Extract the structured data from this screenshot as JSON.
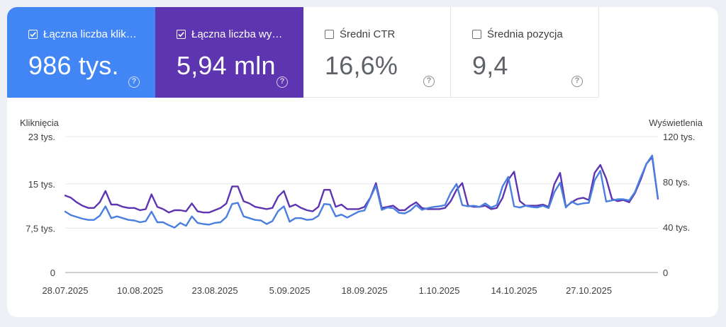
{
  "metrics": [
    {
      "label": "Łączna liczba klik…",
      "value": "986 tys.",
      "checked": true,
      "bg": "#4285f4",
      "help": "?"
    },
    {
      "label": "Łączna liczba wy…",
      "value": "5,94 mln",
      "checked": true,
      "bg": "#5e35b1",
      "help": "?"
    },
    {
      "label": "Średni CTR",
      "value": "16,6%",
      "checked": false,
      "bg": "#ffffff",
      "help": "?"
    },
    {
      "label": "Średnia pozycja",
      "value": "9,4",
      "checked": false,
      "bg": "#ffffff",
      "help": "?"
    }
  ],
  "chart_data": {
    "type": "line",
    "ylabel_left": "Kliknięcia",
    "ylabel_right": "Wyświetlenia",
    "left_ticks": [
      {
        "v": 0,
        "label": "0"
      },
      {
        "v": 7.5,
        "label": "7,5 tys."
      },
      {
        "v": 15,
        "label": "15 tys."
      },
      {
        "v": 23,
        "label": "23 tys."
      }
    ],
    "right_ticks": [
      {
        "v": 0,
        "label": "0"
      },
      {
        "v": 40,
        "label": "40 tys."
      },
      {
        "v": 80,
        "label": "80 tys."
      },
      {
        "v": 120,
        "label": "120 tys."
      }
    ],
    "ylim_left": [
      0,
      23
    ],
    "ylim_right": [
      0,
      120
    ],
    "x_tick_labels": [
      "28.07.2025",
      "10.08.2025",
      "23.08.2025",
      "5.09.2025",
      "18.09.2025",
      "1.10.2025",
      "14.10.2025",
      "27.10.2025"
    ],
    "x_tick_index": [
      0,
      13,
      26,
      39,
      52,
      65,
      78,
      91
    ],
    "grid": true,
    "series": [
      {
        "axis": "right",
        "color": "#5e35b1",
        "unit": "tys.",
        "values": [
          68,
          66,
          62,
          59,
          57,
          57,
          62,
          72,
          60,
          60,
          58,
          57,
          57,
          55,
          56,
          69,
          58,
          56,
          53,
          55,
          55,
          54,
          61,
          54,
          53,
          53,
          55,
          57,
          61,
          76,
          76,
          63,
          61,
          58,
          57,
          56,
          57,
          67,
          72,
          58,
          60,
          57,
          55,
          54,
          58,
          73,
          73,
          58,
          60,
          56,
          56,
          56,
          58,
          66,
          79,
          57,
          58,
          59,
          55,
          55,
          59,
          62,
          57,
          56,
          56,
          56,
          57,
          63,
          73,
          79,
          59,
          58,
          58,
          59,
          56,
          57,
          66,
          82,
          89,
          63,
          59,
          59,
          59,
          60,
          58,
          78,
          88,
          58,
          62,
          65,
          66,
          64,
          88,
          95,
          83,
          65,
          63,
          64,
          62,
          70,
          82,
          96,
          102,
          65
        ]
      },
      {
        "axis": "left",
        "color": "#4a7fe0",
        "unit": "tys.",
        "values": [
          10.3,
          9.7,
          9.4,
          9.1,
          8.9,
          8.9,
          9.6,
          11.2,
          9.2,
          9.5,
          9.2,
          8.9,
          8.8,
          8.5,
          8.7,
          10.3,
          8.5,
          8.5,
          8.0,
          7.6,
          8.4,
          7.9,
          9.5,
          8.4,
          8.2,
          8.1,
          8.4,
          8.5,
          9.4,
          11.6,
          11.8,
          9.5,
          9.2,
          8.9,
          8.8,
          8.2,
          8.7,
          10.4,
          11.2,
          8.6,
          9.2,
          9.2,
          8.9,
          9.0,
          9.6,
          11.6,
          11.5,
          9.5,
          9.8,
          9.3,
          9.8,
          10.3,
          10.5,
          12.6,
          14.7,
          10.6,
          11.0,
          10.9,
          10.1,
          10.0,
          10.5,
          11.4,
          10.6,
          10.9,
          11.1,
          11.2,
          11.4,
          13.5,
          15.0,
          11.4,
          11.2,
          11.3,
          11.1,
          11.7,
          11.0,
          11.4,
          14.6,
          16.2,
          11.2,
          11.0,
          11.3,
          11.1,
          11.0,
          11.3,
          10.9,
          13.6,
          15.2,
          11.0,
          12.0,
          11.5,
          11.7,
          11.8,
          15.6,
          17.2,
          12.0,
          12.2,
          12.4,
          12.4,
          12.2,
          13.6,
          16.1,
          18.4,
          19.8,
          12.5
        ]
      }
    ]
  }
}
